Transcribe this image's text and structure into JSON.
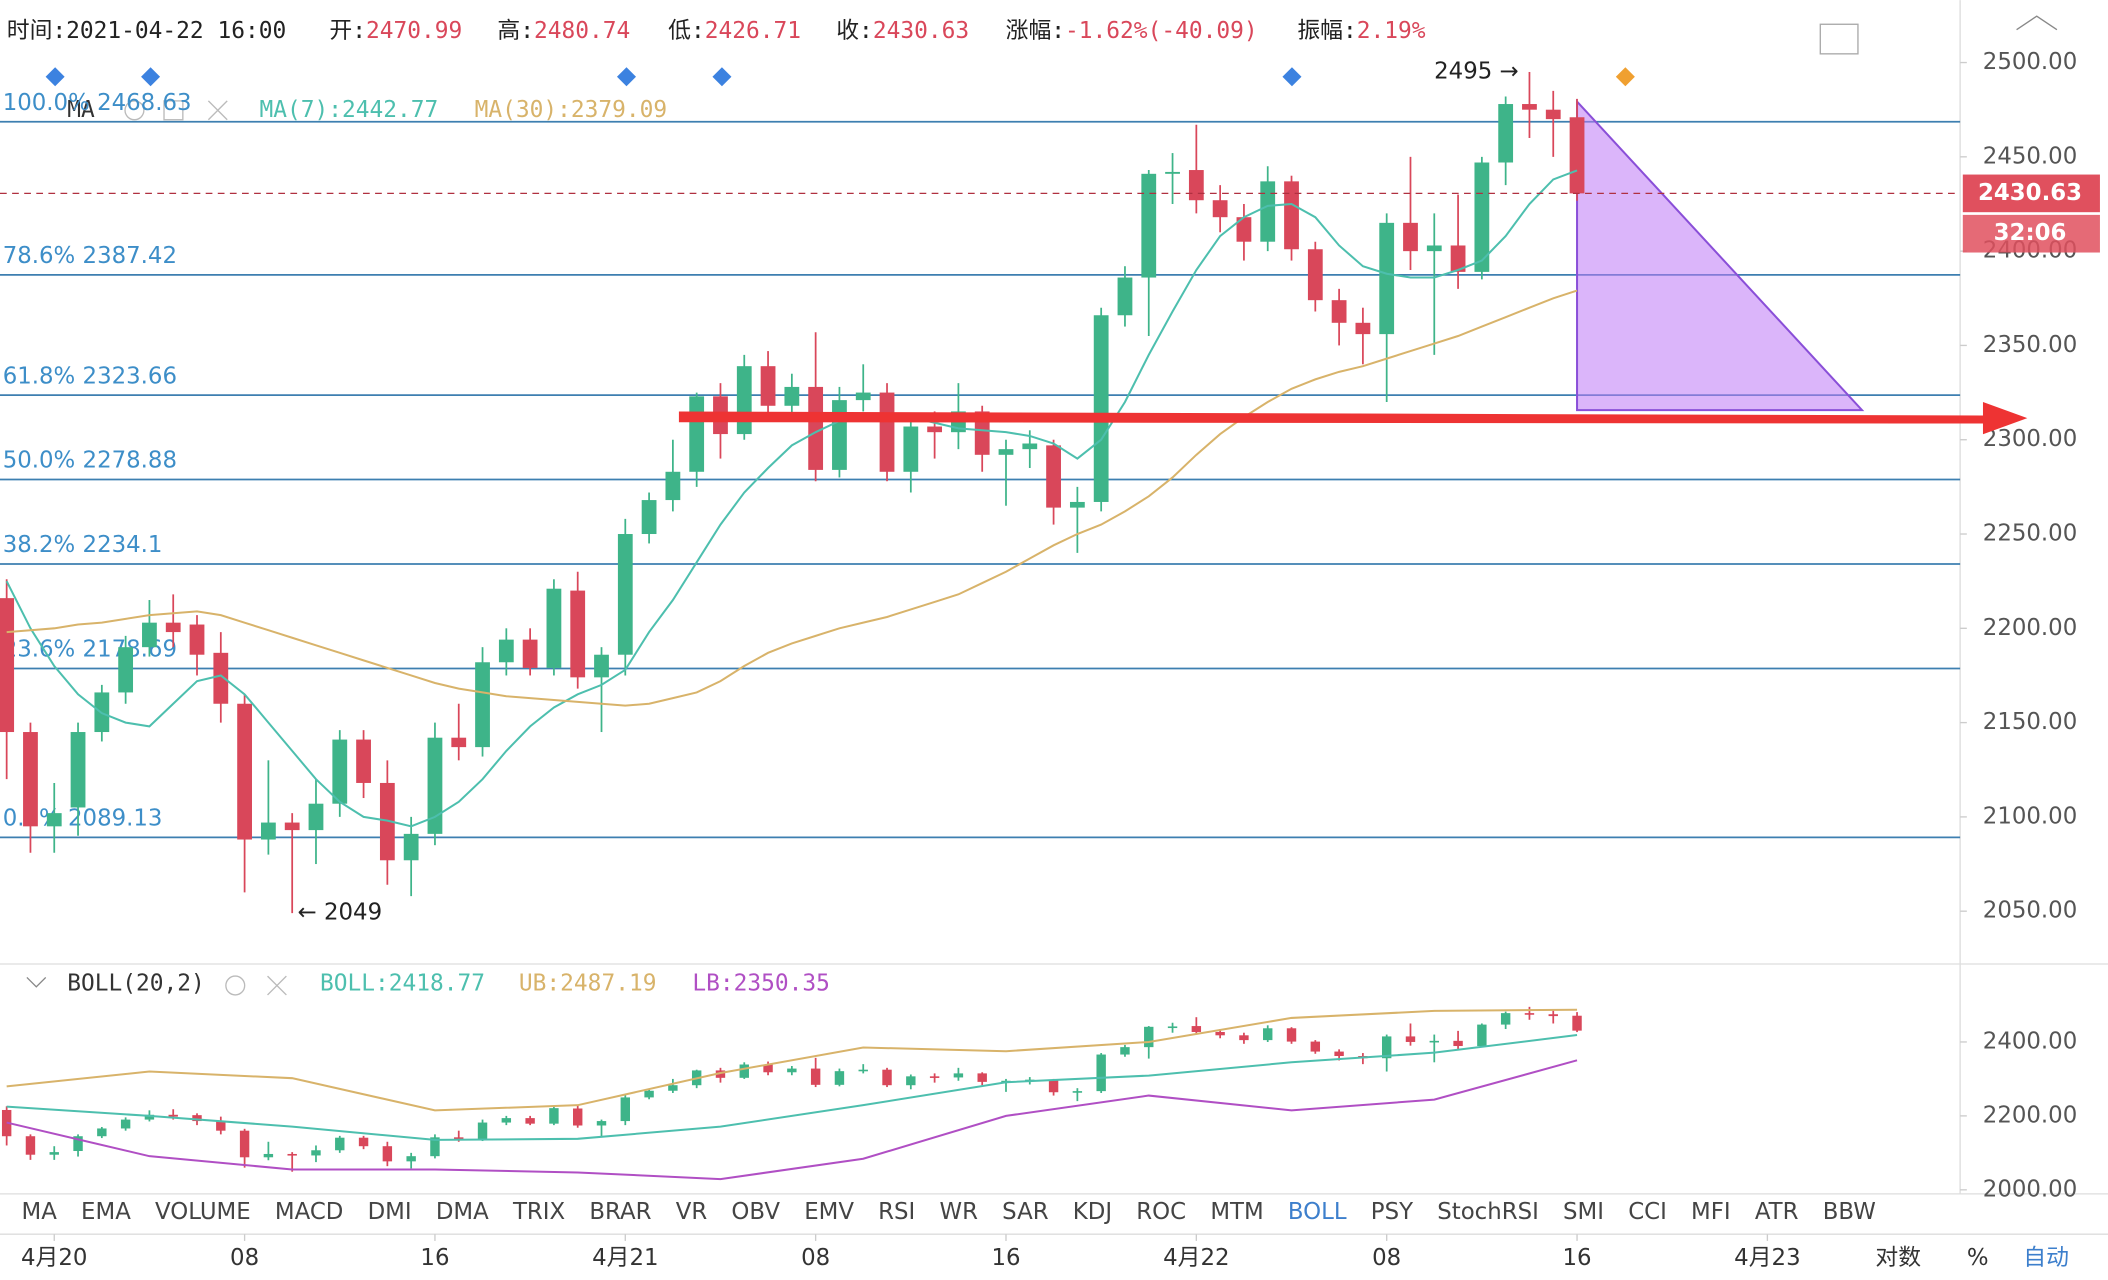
{
  "header": [
    {
      "label": "时间:2021-04-22 16:00"
    },
    {
      "label": "开:",
      "value": "2470.99"
    },
    {
      "label": "高:",
      "value": "2480.74"
    },
    {
      "label": "低:",
      "value": "2426.71"
    },
    {
      "label": "收:",
      "value": "2430.63"
    },
    {
      "label": "涨幅:",
      "value": "-1.62%(-40.09)"
    },
    {
      "label": "振幅:",
      "value": "2.19%"
    }
  ],
  "tabs": [
    "MA",
    "EMA",
    "VOLUME",
    "MACD",
    "DMI",
    "DMA",
    "TRIX",
    "BRAR",
    "VR",
    "OBV",
    "EMV",
    "RSI",
    "WR",
    "SAR",
    "KDJ",
    "ROC",
    "MTM",
    "BOLL",
    "PSY",
    "StochRSI",
    "SMI",
    "CCI",
    "MFI",
    "ATR",
    "BBW"
  ],
  "footer": [
    "对数",
    "%",
    "自动"
  ],
  "chart_data": [
    {
      "type": "candlestick",
      "legend": [
        "MA",
        "MA(7):2442.77",
        "MA(30):2379.09"
      ],
      "open": [
        2216,
        2145,
        2095,
        2105,
        2145,
        2166,
        2190,
        2203,
        2202,
        2187,
        2160,
        2088,
        2097,
        2093,
        2107,
        2141,
        2118,
        2077,
        2091,
        2142,
        2137,
        2182,
        2194,
        2179,
        2220,
        2174,
        2186,
        2250,
        2268,
        2283,
        2323,
        2303,
        2339,
        2318,
        2328,
        2284,
        2321,
        2325,
        2283,
        2307,
        2304,
        2315,
        2292,
        2295,
        2297,
        2264,
        2267,
        2366,
        2386,
        2441,
        2443,
        2427,
        2418,
        2405,
        2437,
        2401,
        2374,
        2362,
        2356,
        2415,
        2400,
        2403,
        2389,
        2447,
        2478,
        2475,
        2470.99
      ],
      "high": [
        2226,
        2150,
        2118,
        2150,
        2170,
        2196,
        2215,
        2218,
        2207,
        2198,
        2165,
        2130,
        2102,
        2120,
        2146,
        2146,
        2130,
        2100,
        2150,
        2160,
        2190,
        2200,
        2200,
        2226,
        2230,
        2190,
        2258,
        2272,
        2300,
        2325,
        2330,
        2345,
        2347,
        2335,
        2357,
        2328,
        2340,
        2330,
        2312,
        2315,
        2330,
        2318,
        2300,
        2305,
        2300,
        2275,
        2370,
        2392,
        2443,
        2452,
        2467,
        2435,
        2425,
        2445,
        2440,
        2405,
        2380,
        2370,
        2420,
        2450,
        2420,
        2430,
        2450,
        2482,
        2495,
        2485,
        2480.74
      ],
      "low": [
        2120,
        2081,
        2081,
        2090,
        2140,
        2160,
        2185,
        2190,
        2175,
        2150,
        2060,
        2080,
        2049,
        2075,
        2100,
        2110,
        2064,
        2058,
        2085,
        2130,
        2132,
        2175,
        2175,
        2175,
        2168,
        2145,
        2175,
        2245,
        2262,
        2275,
        2290,
        2300,
        2310,
        2310,
        2278,
        2280,
        2315,
        2278,
        2272,
        2290,
        2295,
        2283,
        2265,
        2285,
        2255,
        2240,
        2262,
        2360,
        2355,
        2425,
        2420,
        2410,
        2395,
        2400,
        2395,
        2368,
        2350,
        2340,
        2320,
        2390,
        2345,
        2380,
        2385,
        2435,
        2460,
        2450,
        2426.71
      ],
      "close": [
        2145,
        2095,
        2102,
        2145,
        2166,
        2190,
        2203,
        2198,
        2186,
        2160,
        2088,
        2097,
        2093,
        2107,
        2141,
        2118,
        2077,
        2091,
        2142,
        2137,
        2182,
        2194,
        2179,
        2221,
        2174,
        2186,
        2250,
        2268,
        2283,
        2323,
        2303,
        2339,
        2318,
        2328,
        2284,
        2321,
        2325,
        2283,
        2307,
        2304,
        2315,
        2292,
        2295,
        2298,
        2264,
        2267,
        2366,
        2386,
        2441,
        2442,
        2427,
        2418,
        2405,
        2437,
        2401,
        2374,
        2362,
        2356,
        2415,
        2400,
        2403,
        2389,
        2447,
        2478,
        2475,
        2470,
        2430.63
      ],
      "series": [
        {
          "name": "MA(7)",
          "color": "#4dbfae",
          "values": [
            2225,
            2200,
            2180,
            2165,
            2155,
            2150,
            2148,
            2160,
            2172,
            2175,
            2165,
            2150,
            2135,
            2120,
            2108,
            2100,
            2098,
            2095,
            2100,
            2108,
            2120,
            2135,
            2148,
            2158,
            2165,
            2170,
            2178,
            2198,
            2215,
            2235,
            2255,
            2272,
            2285,
            2297,
            2304,
            2310,
            2312,
            2313,
            2312,
            2309,
            2306,
            2305,
            2304,
            2302,
            2298,
            2290,
            2300,
            2320,
            2345,
            2368,
            2390,
            2408,
            2418,
            2424,
            2425,
            2418,
            2403,
            2392,
            2388,
            2386,
            2386,
            2390,
            2395,
            2408,
            2425,
            2438,
            2442.77
          ]
        },
        {
          "name": "MA(30)",
          "color": "#d8b36a",
          "values": [
            2198,
            2199,
            2200,
            2202,
            2203,
            2205,
            2207,
            2208,
            2209,
            2207,
            2203,
            2199,
            2195,
            2191,
            2187,
            2183,
            2179,
            2175,
            2171,
            2168,
            2166,
            2164,
            2163,
            2162,
            2161,
            2160,
            2159,
            2160,
            2163,
            2166,
            2172,
            2180,
            2187,
            2192,
            2196,
            2200,
            2203,
            2206,
            2210,
            2214,
            2218,
            2224,
            2230,
            2237,
            2244,
            2250,
            2255,
            2262,
            2270,
            2280,
            2292,
            2303,
            2312,
            2320,
            2327,
            2332,
            2336,
            2339,
            2343,
            2347,
            2351,
            2355,
            2360,
            2365,
            2370,
            2375,
            2379.09
          ]
        }
      ],
      "up_color": "#3eb489",
      "down_color": "#d9475a",
      "levels": [
        {
          "label": "100.0%",
          "value": 2468.63
        },
        {
          "label": "78.6%",
          "value": 2387.42
        },
        {
          "label": "61.8%",
          "value": 2323.66
        },
        {
          "label": "50.0%",
          "value": 2278.88
        },
        {
          "label": "38.2%",
          "value": 2234.1
        },
        {
          "label": "23.6%",
          "value": 2178.69
        },
        {
          "label": "0.0%",
          "value": 2089.13
        }
      ],
      "annotations": [
        "2495 →",
        "← 2049"
      ],
      "countdown": "32:06",
      "xlim": [
        -0.28,
        82.1
      ],
      "xticks": [
        {
          "value": 2,
          "label": "4月20"
        },
        {
          "value": 10,
          "label": "08"
        },
        {
          "value": 18,
          "label": "16"
        },
        {
          "value": 26,
          "label": "4月21"
        },
        {
          "value": 34,
          "label": "08"
        },
        {
          "value": 42,
          "label": "16"
        },
        {
          "value": 50,
          "label": "4月22"
        },
        {
          "value": 58,
          "label": "08"
        },
        {
          "value": 66,
          "label": "16"
        },
        {
          "value": 74,
          "label": "4月23"
        }
      ],
      "ylim": [
        2022,
        2526
      ],
      "yticks": [
        {
          "value": 2050,
          "label": "2050.00"
        },
        {
          "value": 2100,
          "label": "2100.00"
        },
        {
          "value": 2150,
          "label": "2150.00"
        },
        {
          "value": 2200,
          "label": "2200.00"
        },
        {
          "value": 2250,
          "label": "2250.00"
        },
        {
          "value": 2300,
          "label": "2300.00"
        },
        {
          "value": 2350,
          "label": "2350.00"
        },
        {
          "value": 2400,
          "label": "2400.00"
        },
        {
          "value": 2450,
          "label": "2450.00"
        },
        {
          "value": 2500,
          "label": "2500.00"
        }
      ],
      "grid": false
    },
    {
      "type": "line",
      "legend": [
        "BOLL(20,2)",
        "BOLL:2418.77",
        "UB:2487.19",
        "LB:2350.35"
      ],
      "x": [
        0,
        6,
        12,
        18,
        24,
        30,
        36,
        42,
        48,
        54,
        60,
        66
      ],
      "series": [
        {
          "name": "UB",
          "color": "#d8b36a",
          "values": [
            2280,
            2320,
            2302,
            2215,
            2229,
            2316,
            2385,
            2375,
            2400,
            2465,
            2484,
            2487.19
          ]
        },
        {
          "name": "BOLL",
          "color": "#4dbfae",
          "values": [
            2225,
            2200,
            2171,
            2135,
            2138,
            2171,
            2229,
            2291,
            2309,
            2345,
            2371,
            2418.77
          ]
        },
        {
          "name": "LB",
          "color": "#b04fc4",
          "values": [
            2182,
            2091,
            2055,
            2055,
            2047,
            2029,
            2084,
            2200,
            2255,
            2215,
            2244,
            2350.35
          ]
        }
      ],
      "ylim": [
        1989,
        2600
      ],
      "yticks": [
        {
          "value": 2000,
          "label": "2000.00"
        },
        {
          "value": 2200,
          "label": "2200.00"
        },
        {
          "value": 2400,
          "label": "2400.00"
        }
      ]
    }
  ]
}
